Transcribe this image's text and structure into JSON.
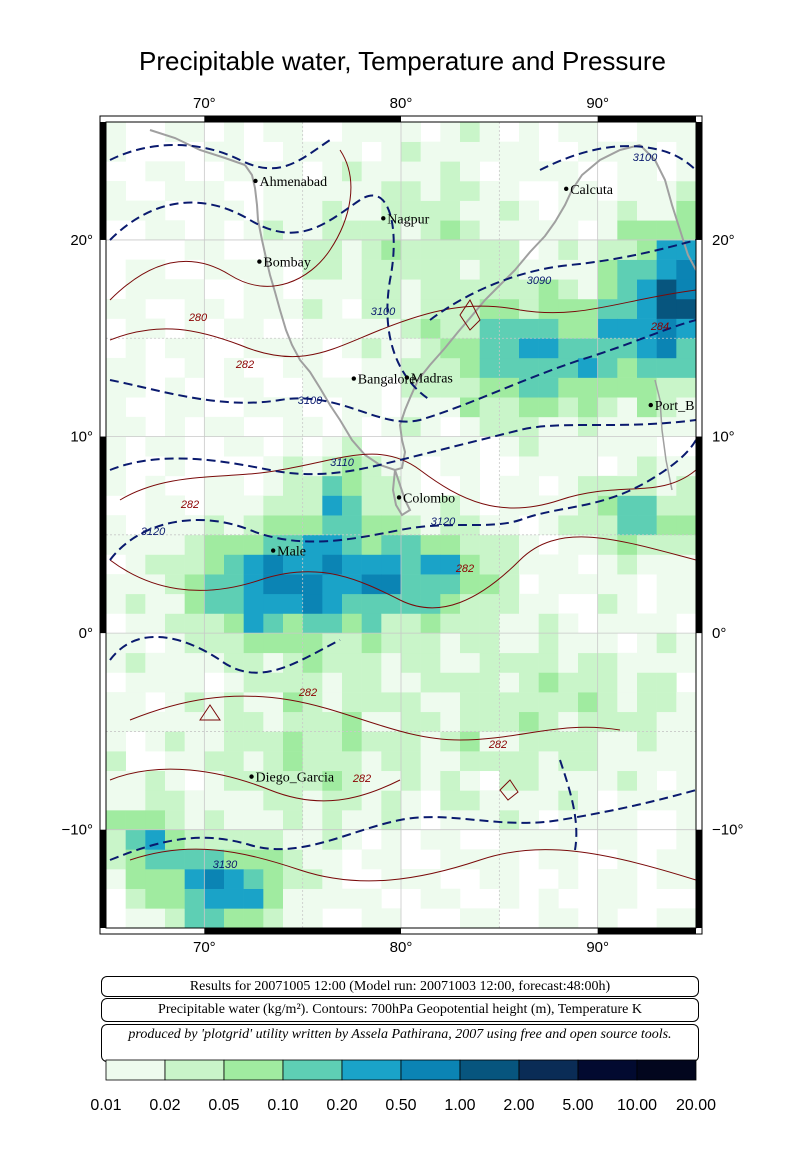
{
  "title": "Precipitable water, Temperature and Pressure",
  "axes": {
    "lon_ticks": [
      "70°",
      "80°",
      "90°"
    ],
    "lat_ticks_left": [
      "20°",
      "10°",
      "0°",
      "−10°"
    ],
    "lat_ticks_right": [
      "20°",
      "10°",
      "0°",
      "−10°"
    ]
  },
  "cities": [
    {
      "name": "Ahmenabad",
      "lon": 72.6,
      "lat": 23.0
    },
    {
      "name": "Calcuta",
      "lon": 88.4,
      "lat": 22.6
    },
    {
      "name": "Nagpur",
      "lon": 79.1,
      "lat": 21.1
    },
    {
      "name": "Bombay",
      "lon": 72.8,
      "lat": 18.9
    },
    {
      "name": "Bangalore",
      "lon": 77.6,
      "lat": 12.95
    },
    {
      "name": "Madras",
      "lon": 80.3,
      "lat": 13.0
    },
    {
      "name": "Port_B",
      "lon": 92.7,
      "lat": 11.6
    },
    {
      "name": "Colombo",
      "lon": 79.9,
      "lat": 6.9
    },
    {
      "name": "Male",
      "lon": 73.5,
      "lat": 4.2
    },
    {
      "name": "Diego_Garcia",
      "lon": 72.4,
      "lat": -7.3
    }
  ],
  "contour_labels": {
    "temperature": [
      "280",
      "282",
      "282",
      "282",
      "282",
      "282",
      "282",
      "284"
    ],
    "geopotential": [
      "3100",
      "3090",
      "3100",
      "3100",
      "3110",
      "3120",
      "3120",
      "3130"
    ]
  },
  "info": {
    "line1": "Results for 20071005 12:00 (Model run: 20071003 12:00, forecast:48:00h)",
    "line2": "Precipitable water (kg/m²).  Contours: 700hPa Geopotential height (m), Temperature K",
    "line3": "produced by 'plotgrid' utility written by Assela Pathirana, 2007 using free and open source tools."
  },
  "legend": {
    "labels": [
      "0.01",
      "0.02",
      "0.05",
      "0.10",
      "0.20",
      "0.50",
      "1.00",
      "2.00",
      "5.00",
      "10.00",
      "20.00"
    ],
    "colors": [
      "#eefbee",
      "#c9f5c9",
      "#a0eba0",
      "#5ecfb4",
      "#1aa3c8",
      "#0b84b4",
      "#07557e",
      "#0a2c56",
      "#020a30",
      "#02061e"
    ]
  },
  "chart_data": {
    "type": "heatmap",
    "lon_range": [
      65,
      95
    ],
    "lat_range": [
      -15,
      26
    ],
    "cell_size_deg": 1
  }
}
